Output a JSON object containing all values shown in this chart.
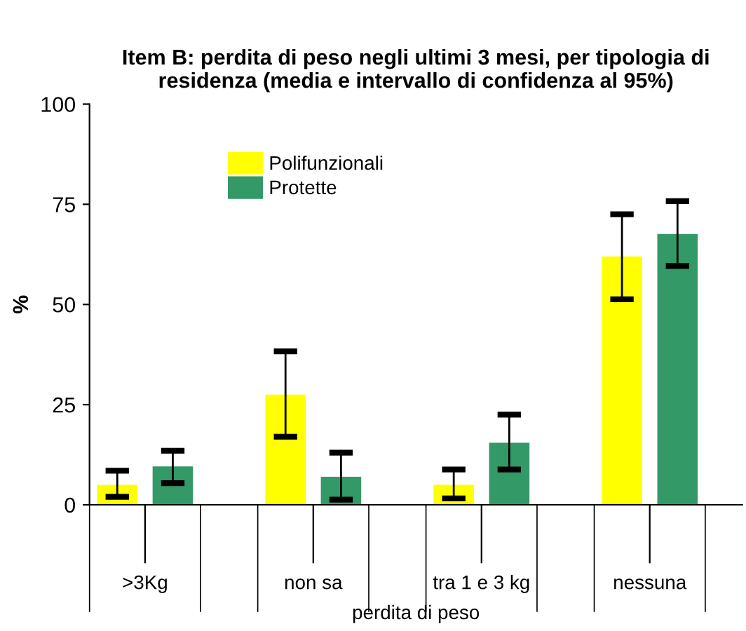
{
  "chart_data": {
    "type": "bar",
    "title": "Item B: perdita di peso negli ultimi 3 mesi, per tipologia di residenza (media e intervallo di confidenza al 95%)",
    "xlabel": "perdita di peso",
    "ylabel": "%",
    "categories": [
      ">3Kg",
      "non sa",
      "tra 1 e 3 kg",
      "nessuna"
    ],
    "series": [
      {
        "name": "Polifunzionali",
        "color": "#ffff00",
        "values": [
          5,
          27.5,
          5,
          62
        ],
        "errors": [
          [
            2,
            8.5
          ],
          [
            17,
            38.3
          ],
          [
            1.6,
            8.8
          ],
          [
            51.3,
            72.5
          ]
        ]
      },
      {
        "name": "Protette",
        "color": "#339966",
        "values": [
          9.6,
          7,
          15.5,
          67.6
        ],
        "errors": [
          [
            5.4,
            13.5
          ],
          [
            1.3,
            13
          ],
          [
            8.8,
            22.5
          ],
          [
            59.6,
            75.8
          ]
        ]
      }
    ],
    "ylim": [
      0,
      100
    ],
    "yticks": [
      0,
      25,
      50,
      75,
      100
    ],
    "grid": false,
    "legend": "top left"
  }
}
